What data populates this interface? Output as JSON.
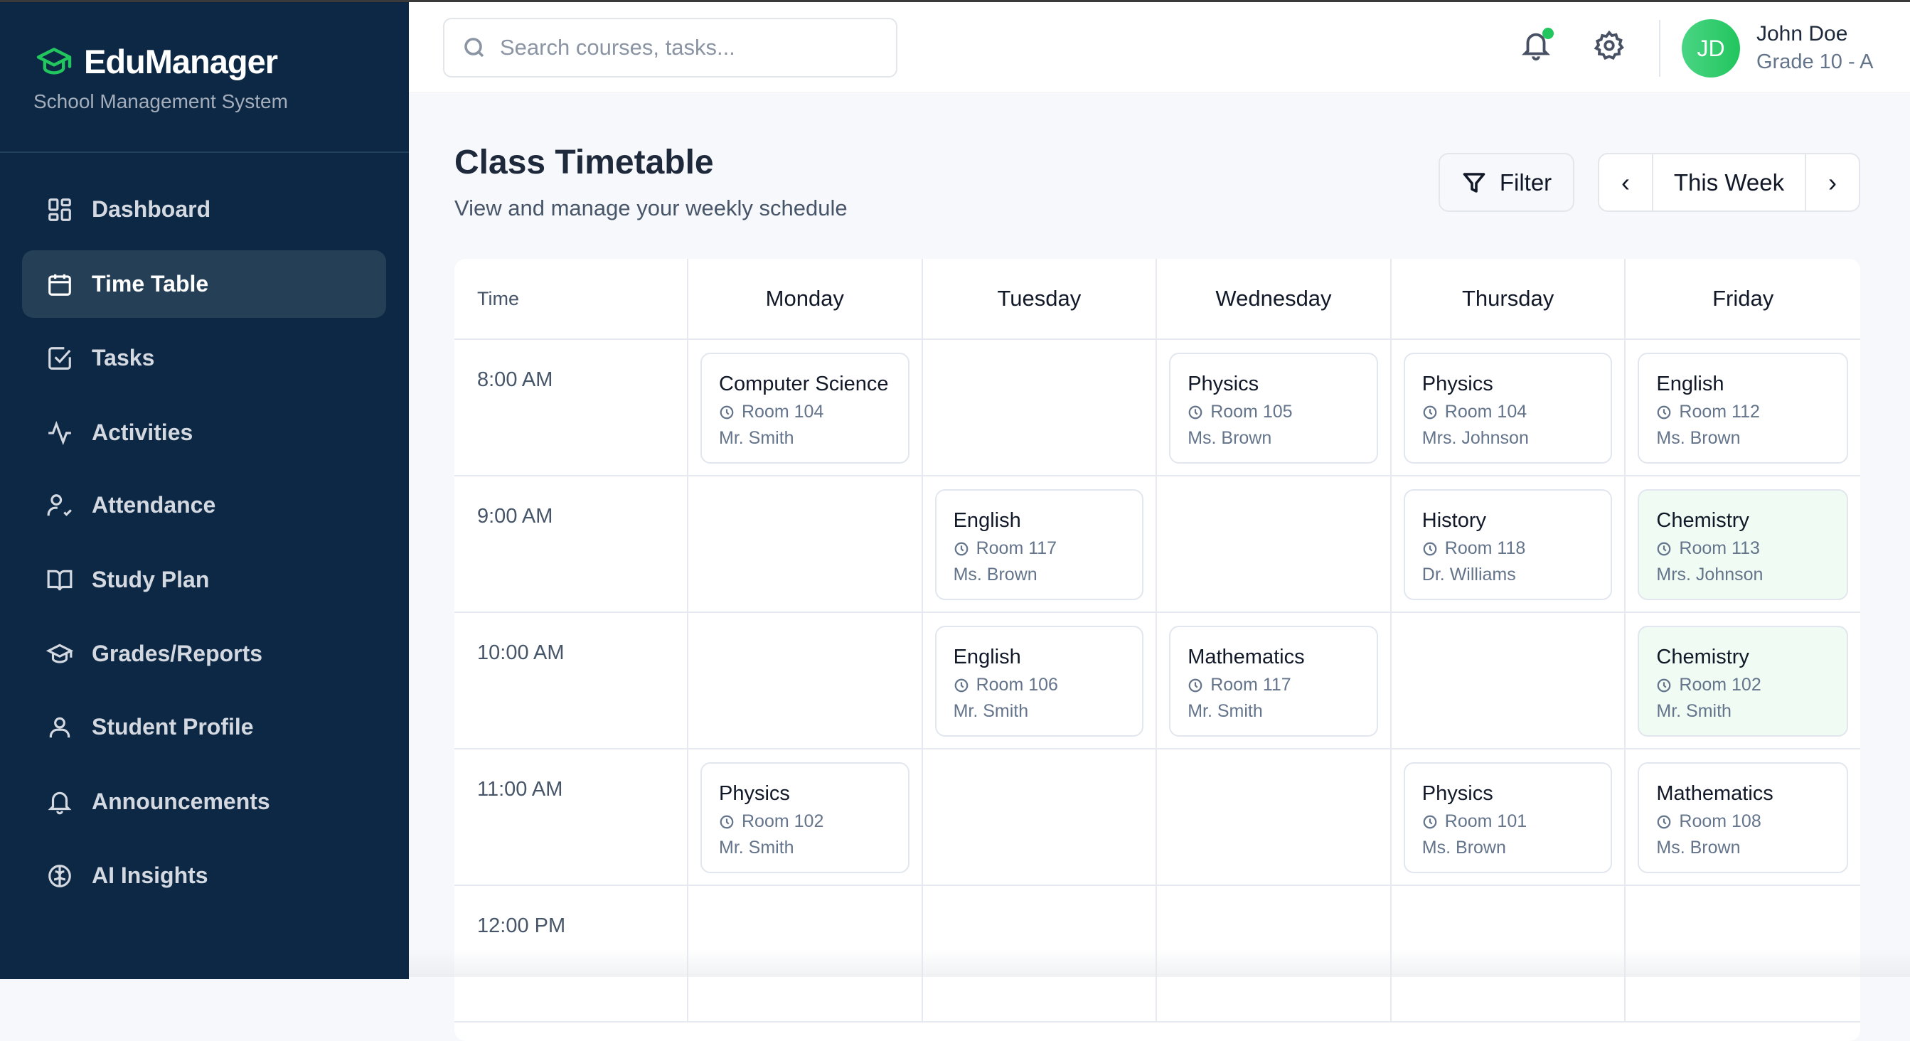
{
  "app": {
    "name": "EduManager",
    "subtitle": "School Management System",
    "accent": "#22c55e"
  },
  "sidebar": {
    "items": [
      {
        "label": "Dashboard",
        "icon": "dashboard-icon"
      },
      {
        "label": "Time Table",
        "icon": "calendar-icon",
        "active": true
      },
      {
        "label": "Tasks",
        "icon": "checkbox-icon"
      },
      {
        "label": "Activities",
        "icon": "activity-icon"
      },
      {
        "label": "Attendance",
        "icon": "user-check-icon"
      },
      {
        "label": "Study Plan",
        "icon": "book-icon"
      },
      {
        "label": "Grades/Reports",
        "icon": "graduation-cap-icon"
      },
      {
        "label": "Student Profile",
        "icon": "user-icon"
      },
      {
        "label": "Announcements",
        "icon": "bell-icon"
      },
      {
        "label": "AI Insights",
        "icon": "brain-icon"
      }
    ]
  },
  "header": {
    "search_placeholder": "Search courses, tasks...",
    "user": {
      "initials": "JD",
      "name": "John Doe",
      "grade": "Grade 10 - A"
    }
  },
  "page": {
    "title": "Class Timetable",
    "subtitle": "View and manage your weekly schedule",
    "filter_label": "Filter",
    "week_label": "This Week",
    "prev": "‹",
    "next": "›"
  },
  "timetable": {
    "time_header": "Time",
    "days": [
      "Monday",
      "Tuesday",
      "Wednesday",
      "Thursday",
      "Friday"
    ],
    "rows": [
      {
        "time": "8:00 AM",
        "cells": [
          {
            "subject": "Computer Science",
            "room": "Room 104",
            "teacher": "Mr. Smith"
          },
          null,
          {
            "subject": "Physics",
            "room": "Room 105",
            "teacher": "Ms. Brown"
          },
          {
            "subject": "Physics",
            "room": "Room 104",
            "teacher": "Mrs. Johnson"
          },
          {
            "subject": "English",
            "room": "Room 112",
            "teacher": "Ms. Brown"
          }
        ]
      },
      {
        "time": "9:00 AM",
        "cells": [
          null,
          {
            "subject": "English",
            "room": "Room 117",
            "teacher": "Ms. Brown"
          },
          null,
          {
            "subject": "History",
            "room": "Room 118",
            "teacher": "Dr. Williams"
          },
          {
            "subject": "Chemistry",
            "room": "Room 113",
            "teacher": "Mrs. Johnson",
            "highlight": true
          }
        ]
      },
      {
        "time": "10:00 AM",
        "cells": [
          null,
          {
            "subject": "English",
            "room": "Room 106",
            "teacher": "Mr. Smith"
          },
          {
            "subject": "Mathematics",
            "room": "Room 117",
            "teacher": "Mr. Smith"
          },
          null,
          {
            "subject": "Chemistry",
            "room": "Room 102",
            "teacher": "Mr. Smith",
            "highlight": true
          }
        ]
      },
      {
        "time": "11:00 AM",
        "cells": [
          {
            "subject": "Physics",
            "room": "Room 102",
            "teacher": "Mr. Smith"
          },
          null,
          null,
          {
            "subject": "Physics",
            "room": "Room 101",
            "teacher": "Ms. Brown"
          },
          {
            "subject": "Mathematics",
            "room": "Room 108",
            "teacher": "Ms. Brown"
          }
        ]
      },
      {
        "time": "12:00 PM",
        "cells": [
          null,
          null,
          null,
          null,
          null
        ]
      }
    ]
  }
}
